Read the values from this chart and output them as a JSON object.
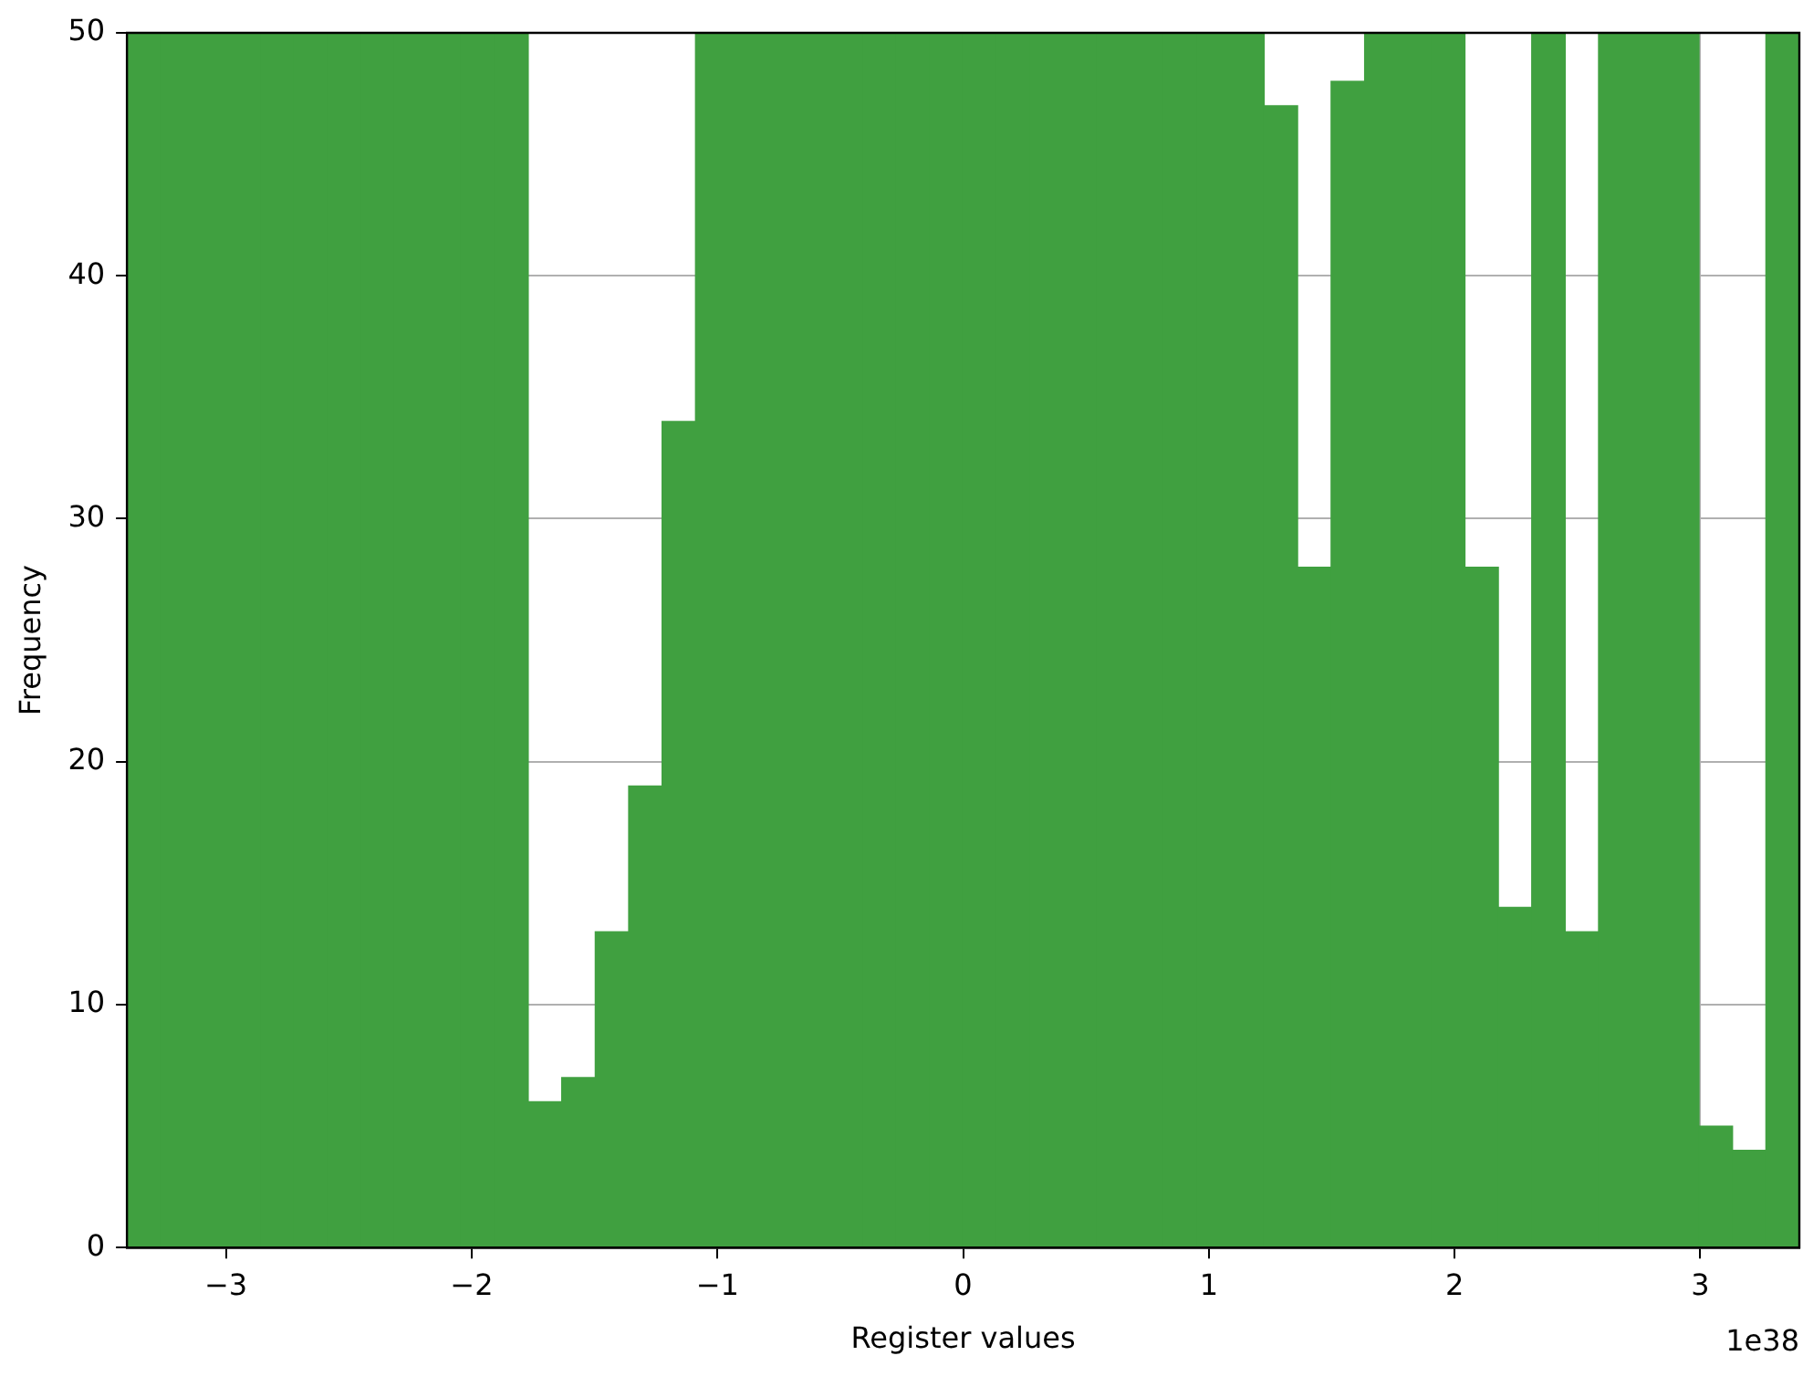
{
  "chart_data": {
    "type": "histogram",
    "xlabel": "Register values",
    "ylabel": "Frequency",
    "annotations": [
      "1e38"
    ],
    "bins": [
      -3.403,
      -3.267,
      -3.131,
      -2.995,
      -2.858,
      -2.722,
      -2.586,
      -2.45,
      -2.314,
      -2.178,
      -2.042,
      -1.906,
      -1.77,
      -1.634,
      -1.497,
      -1.361,
      -1.225,
      -1.089,
      -0.953,
      -0.817,
      -0.681,
      -0.545,
      -0.408,
      -0.272,
      -0.136,
      0,
      0.136,
      0.272,
      0.408,
      0.545,
      0.681,
      0.817,
      0.953,
      1.089,
      1.225,
      1.361,
      1.497,
      1.634,
      1.77,
      1.906,
      2.042,
      2.178,
      2.314,
      2.45,
      2.586,
      2.722,
      2.858,
      2.995,
      3.131,
      3.267,
      3.403
    ],
    "values": [
      50,
      50,
      50,
      50,
      50,
      50,
      50,
      50,
      50,
      50,
      50,
      50,
      6,
      7,
      13,
      19,
      34,
      50,
      50,
      50,
      50,
      50,
      50,
      50,
      50,
      50,
      50,
      50,
      50,
      50,
      50,
      50,
      50,
      50,
      47,
      28,
      48,
      50,
      50,
      50,
      28,
      14,
      50,
      13,
      50,
      50,
      50,
      5,
      4,
      50
    ],
    "color": "#40a040",
    "xlim": [
      -3.403,
      3.403
    ],
    "ylim": [
      0,
      50
    ],
    "xticks": [
      -3,
      -2,
      -1,
      0,
      1,
      2,
      3
    ],
    "yticks": [
      0,
      10,
      20,
      30,
      40,
      50
    ],
    "grid": true,
    "legend": false
  }
}
